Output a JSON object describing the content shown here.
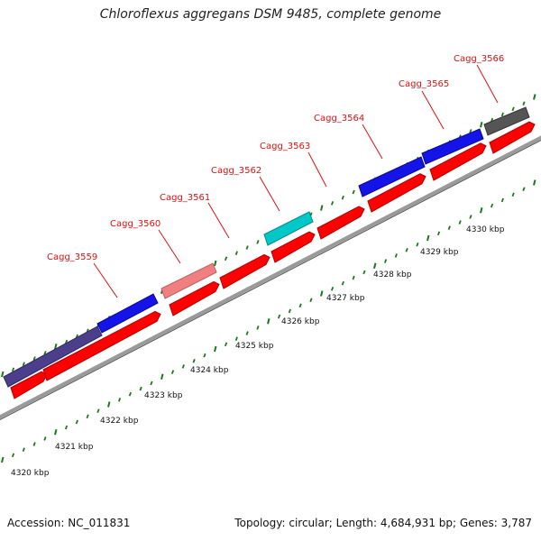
{
  "title": "Chloroflexus aggregans DSM 9485, complete genome",
  "footer": {
    "accession": "Accession: NC_011831",
    "topology": "Topology: circular; Length: 4,684,931 bp; Genes: 3,787"
  },
  "colors": {
    "cds": "#ff0000",
    "blue": "#1414e8",
    "navy": "#4b3f8c",
    "pink": "#f08080",
    "cyan": "#00c8c8",
    "gray": "#555555",
    "backbone": "#9a9a9a",
    "tick": "#1a7a1a",
    "label": "#e01010"
  },
  "gene_labels": [
    "Cagg_3559",
    "Cagg_3560",
    "Cagg_3561",
    "Cagg_3562",
    "Cagg_3563",
    "Cagg_3564",
    "Cagg_3565",
    "Cagg_3566"
  ],
  "scale_labels": [
    "4320 kbp",
    "4321 kbp",
    "4322 kbp",
    "4323 kbp",
    "4324 kbp",
    "4325 kbp",
    "4326 kbp",
    "4327 kbp",
    "4328 kbp",
    "4329 kbp",
    "4330 kbp"
  ]
}
